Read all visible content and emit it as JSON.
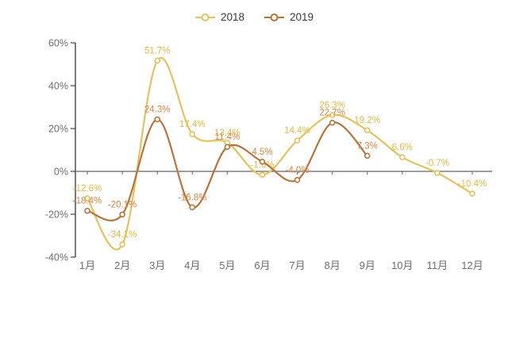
{
  "chart_data": {
    "type": "line",
    "smooth": true,
    "grid": false,
    "legend_position": "top",
    "categories": [
      "1月",
      "2月",
      "3月",
      "4月",
      "5月",
      "6月",
      "7月",
      "8月",
      "9月",
      "10月",
      "11月",
      "12月"
    ],
    "series": [
      {
        "name": "2018",
        "color": "#e7c25b",
        "label_color": "#e9b93f",
        "values": [
          -12.6,
          -34.1,
          51.7,
          17.4,
          13.4,
          -1.6,
          14.4,
          26.3,
          19.2,
          6.6,
          -0.7,
          -10.4
        ]
      },
      {
        "name": "2019",
        "color": "#bc7337",
        "label_color": "#e08340",
        "values": [
          -18.4,
          -20.1,
          24.3,
          -16.8,
          11.4,
          4.5,
          -4.0,
          22.7,
          7.3
        ]
      }
    ],
    "ylim": [
      -40,
      60
    ],
    "yticks": [
      60,
      40,
      20,
      0,
      -20,
      -40
    ],
    "ytick_labels": [
      "60%",
      "40%",
      "20%",
      "0%",
      "-20%",
      "-40%"
    ],
    "unit": "%",
    "axis_color": "#444444",
    "zero_line_color": "#666666",
    "tick_label_color": "#6e6e6e"
  }
}
